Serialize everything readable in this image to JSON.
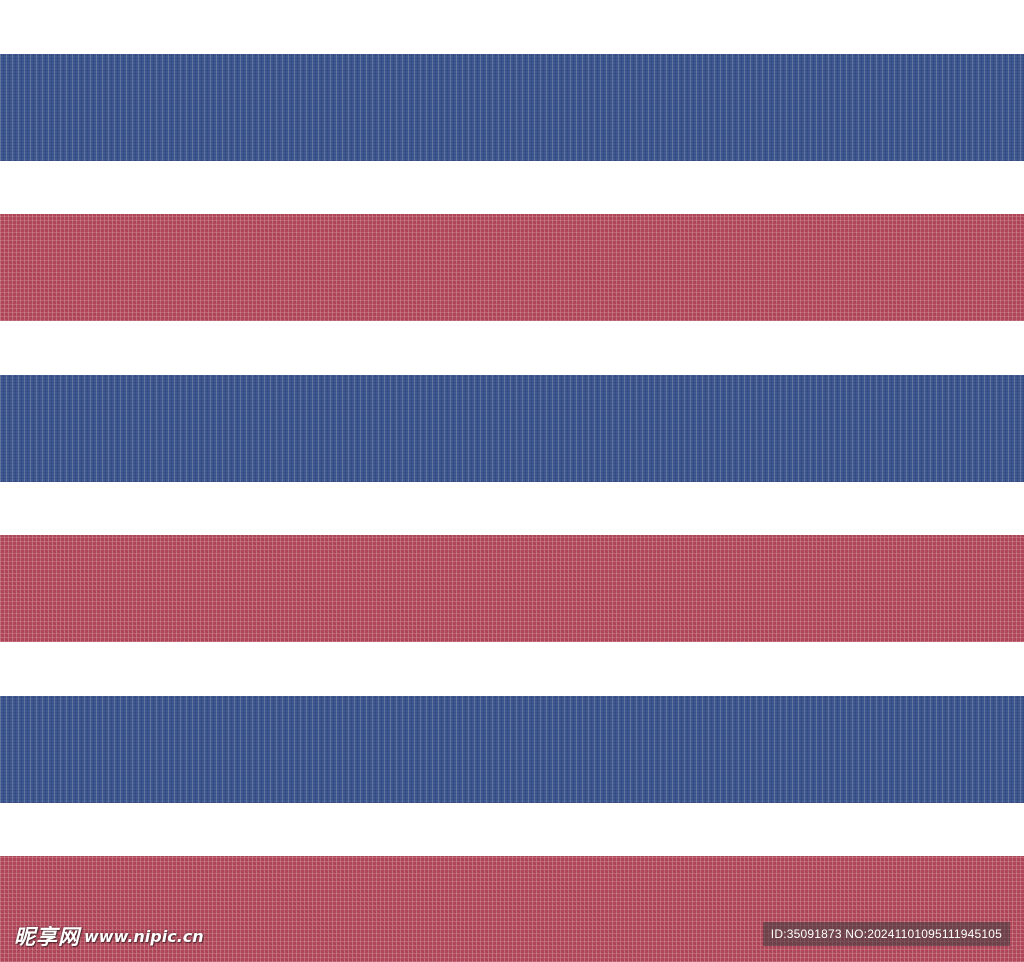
{
  "pattern": {
    "stripe_colors": [
      "#3f5a93",
      "#b2485a",
      "#3f5a93",
      "#b2485a",
      "#3f5a93",
      "#b2485a"
    ],
    "background_color": "#ffffff",
    "blue": "#3f5a93",
    "red": "#b2485a"
  },
  "watermark": {
    "brand": "昵享网",
    "site": "www.nipic.cn",
    "id_label": "ID:35091873 NO:20241101095111945105"
  }
}
